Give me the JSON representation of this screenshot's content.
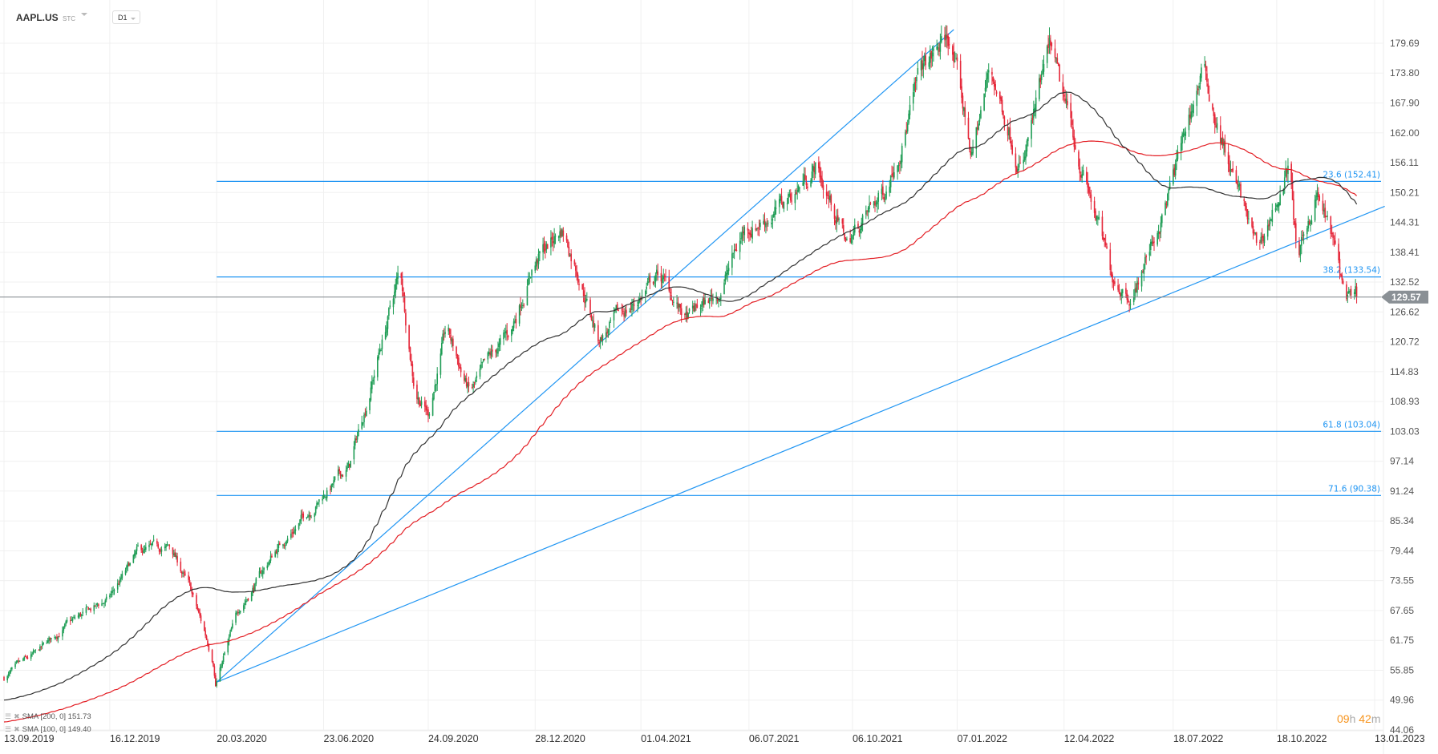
{
  "header": {
    "symbol": "AAPL.US",
    "instrument_type": "STC",
    "timeframe": "D1"
  },
  "legend": [
    {
      "label": "SMA [200, 0] 151.73",
      "color": "#e31e24"
    },
    {
      "label": "SMA [100, 0] 149.40",
      "color": "#333333"
    }
  ],
  "timer": {
    "hours": "09",
    "h": "h",
    "minutes": "42",
    "m": "m"
  },
  "colors": {
    "up": "#1f9d55",
    "down": "#e5283a",
    "drawing": "#2196f3",
    "sma200": "#e31e24",
    "sma100": "#333333",
    "price_line": "#7d8489"
  },
  "chart_data": {
    "type": "candlestick",
    "symbol": "AAPL.US",
    "y_ticks": [
      "179.69",
      "173.80",
      "167.90",
      "162.00",
      "156.11",
      "150.21",
      "144.31",
      "138.41",
      "132.52",
      "126.62",
      "120.72",
      "114.83",
      "108.93",
      "103.03",
      "97.14",
      "91.24",
      "85.34",
      "79.44",
      "73.55",
      "67.65",
      "61.75",
      "55.85",
      "49.96",
      "44.06"
    ],
    "ylim": [
      44.06,
      179.69
    ],
    "x_ticks": [
      "13.09.2019",
      "16.12.2019",
      "20.03.2020",
      "23.06.2020",
      "24.09.2020",
      "28.12.2020",
      "01.04.2021",
      "06.07.2021",
      "06.10.2021",
      "07.01.2022",
      "12.04.2022",
      "18.07.2022",
      "18.10.2022",
      "13.01.2023"
    ],
    "xlim": [
      "2019-09-13",
      "2023-01-13"
    ],
    "grid": true,
    "last_price": 129.57,
    "close_path": [
      [
        "2019-09-13",
        54.4
      ],
      [
        "2019-10-12",
        58.9
      ],
      [
        "2019-11-05",
        64.3
      ],
      [
        "2019-12-15",
        69.8
      ],
      [
        "2020-01-10",
        78.8
      ],
      [
        "2020-02-08",
        80.0
      ],
      [
        "2020-02-24",
        72.5
      ],
      [
        "2020-03-17",
        58.0
      ],
      [
        "2020-03-19",
        53.5
      ],
      [
        "2020-04-09",
        68.0
      ],
      [
        "2020-05-12",
        79.7
      ],
      [
        "2020-06-22",
        90.5
      ],
      [
        "2020-07-16",
        96.0
      ],
      [
        "2020-08-02",
        110.4
      ],
      [
        "2020-08-30",
        134.9
      ],
      [
        "2020-09-12",
        112.0
      ],
      [
        "2020-09-24",
        106.8
      ],
      [
        "2020-10-10",
        123.0
      ],
      [
        "2020-10-31",
        110.4
      ],
      [
        "2020-12-07",
        123.0
      ],
      [
        "2020-12-25",
        135.8
      ],
      [
        "2021-01-21",
        143.0
      ],
      [
        "2021-02-06",
        134.0
      ],
      [
        "2021-02-22",
        121.3
      ],
      [
        "2021-03-27",
        128.5
      ],
      [
        "2021-04-17",
        134.0
      ],
      [
        "2021-05-11",
        124.9
      ],
      [
        "2021-06-09",
        130.3
      ],
      [
        "2021-07-02",
        143.0
      ],
      [
        "2021-08-05",
        147.5
      ],
      [
        "2021-09-03",
        155.6
      ],
      [
        "2021-10-01",
        140.3
      ],
      [
        "2021-11-03",
        150.2
      ],
      [
        "2021-12-06",
        173.7
      ],
      [
        "2021-12-31",
        181.0
      ],
      [
        "2022-01-20",
        157.5
      ],
      [
        "2022-02-05",
        174.6
      ],
      [
        "2022-03-06",
        155.6
      ],
      [
        "2022-03-31",
        178.2
      ],
      [
        "2022-04-08",
        170.1
      ],
      [
        "2022-05-11",
        144.8
      ],
      [
        "2022-05-23",
        134.0
      ],
      [
        "2022-06-12",
        130.3
      ],
      [
        "2022-07-07",
        144.8
      ],
      [
        "2022-07-19",
        153.8
      ],
      [
        "2022-08-13",
        174.6
      ],
      [
        "2022-09-02",
        158.4
      ],
      [
        "2022-10-01",
        138.5
      ],
      [
        "2022-10-21",
        150.2
      ],
      [
        "2022-10-29",
        155.6
      ],
      [
        "2022-11-06",
        135.8
      ],
      [
        "2022-11-22",
        150.2
      ],
      [
        "2022-12-05",
        142.1
      ],
      [
        "2022-12-17",
        130.3
      ],
      [
        "2022-12-25",
        127.6
      ],
      [
        "2022-12-28",
        129.57
      ]
    ],
    "indicators": [
      {
        "name": "SMA",
        "period": 200,
        "value": 151.73
      },
      {
        "name": "SMA",
        "period": 100,
        "value": 149.4
      }
    ],
    "fibonacci": {
      "from": [
        "2020-03-20",
        53.5
      ],
      "to": [
        "2022-01-04",
        182.4
      ],
      "levels": [
        {
          "label": "23.6 (152.41)",
          "price": 152.41
        },
        {
          "label": "38.2 (133.54)",
          "price": 133.54
        },
        {
          "label": "61.8 (103.04)",
          "price": 103.04
        },
        {
          "label": "71.6 (90.38)",
          "price": 90.38
        }
      ]
    },
    "trendlines": [
      {
        "from": [
          "2020-03-20",
          53.5
        ],
        "to": [
          "2022-01-04",
          182.4
        ]
      },
      {
        "from": [
          "2020-03-20",
          53.5
        ],
        "to": [
          "2023-01-22",
          147.5
        ]
      }
    ]
  }
}
